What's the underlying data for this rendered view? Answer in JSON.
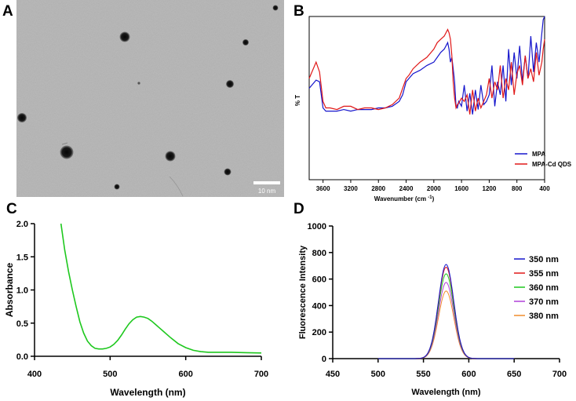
{
  "panels": {
    "a": {
      "letter": "A",
      "scale_bar_label": "10 nm"
    },
    "b": {
      "letter": "B"
    },
    "c": {
      "letter": "C"
    },
    "d": {
      "letter": "D"
    }
  },
  "colors": {
    "blue": "#1515cc",
    "red": "#e01818",
    "green": "#1ec81e",
    "purple": "#b040d8",
    "orange": "#f08c2c"
  },
  "chart_data": [
    {
      "id": "B",
      "type": "line",
      "title": "",
      "xlabel": "Wavenumber (cm ",
      "xlabel_sup": "-1",
      "xlabel_close": ")",
      "ylabel": "% T",
      "xlim": [
        3800,
        400
      ],
      "ylim": [
        0,
        100
      ],
      "x_ticks": [
        3600,
        3200,
        2800,
        2400,
        2000,
        1600,
        1200,
        800,
        400
      ],
      "legend_position": "bottom-right",
      "series": [
        {
          "name": "MPA",
          "color": "#1515cc",
          "x": [
            3800,
            3700,
            3650,
            3600,
            3560,
            3500,
            3400,
            3300,
            3200,
            3100,
            3000,
            2900,
            2800,
            2700,
            2600,
            2500,
            2450,
            2400,
            2360,
            2300,
            2200,
            2100,
            2000,
            1950,
            1900,
            1850,
            1800,
            1780,
            1760,
            1740,
            1720,
            1700,
            1680,
            1660,
            1640,
            1600,
            1560,
            1520,
            1480,
            1440,
            1400,
            1360,
            1320,
            1280,
            1240,
            1200,
            1160,
            1120,
            1080,
            1040,
            1000,
            960,
            920,
            880,
            840,
            800,
            760,
            720,
            680,
            640,
            600,
            560,
            520,
            480,
            440,
            420,
            400
          ],
          "y": [
            56,
            61,
            60,
            44,
            42,
            42,
            42,
            43,
            42,
            43,
            43,
            43,
            44,
            44,
            45,
            48,
            52,
            60,
            62,
            65,
            67,
            70,
            72,
            75,
            78,
            80,
            84,
            80,
            72,
            75,
            68,
            60,
            45,
            44,
            48,
            45,
            58,
            42,
            53,
            40,
            55,
            43,
            58,
            46,
            48,
            52,
            70,
            45,
            60,
            52,
            70,
            48,
            80,
            58,
            78,
            62,
            82,
            60,
            76,
            62,
            88,
            66,
            84,
            72,
            90,
            98,
            100
          ]
        },
        {
          "name": "MPA-Cd QDS",
          "color": "#e01818",
          "x": [
            3800,
            3700,
            3650,
            3600,
            3560,
            3500,
            3400,
            3300,
            3200,
            3100,
            3000,
            2900,
            2800,
            2700,
            2600,
            2500,
            2450,
            2400,
            2360,
            2300,
            2200,
            2100,
            2000,
            1950,
            1900,
            1850,
            1800,
            1780,
            1760,
            1740,
            1720,
            1700,
            1680,
            1660,
            1640,
            1600,
            1560,
            1520,
            1480,
            1440,
            1400,
            1360,
            1320,
            1280,
            1240,
            1200,
            1160,
            1120,
            1080,
            1040,
            1000,
            960,
            920,
            880,
            840,
            800,
            760,
            720,
            680,
            640,
            600,
            560,
            520,
            480,
            440,
            420,
            400
          ],
          "y": [
            62,
            72,
            66,
            48,
            44,
            44,
            43,
            45,
            45,
            43,
            44,
            44,
            43,
            44,
            46,
            50,
            56,
            62,
            64,
            68,
            72,
            75,
            80,
            84,
            86,
            88,
            92,
            90,
            86,
            76,
            60,
            50,
            44,
            46,
            47,
            50,
            48,
            52,
            40,
            55,
            42,
            50,
            44,
            48,
            52,
            62,
            50,
            60,
            55,
            70,
            50,
            62,
            55,
            72,
            52,
            65,
            70,
            58,
            76,
            62,
            68,
            60,
            78,
            64,
            72,
            80,
            86
          ]
        }
      ]
    },
    {
      "id": "C",
      "type": "line",
      "title": "",
      "xlabel": "Wavelength (nm)",
      "ylabel": "Absorbance",
      "xlim": [
        400,
        700
      ],
      "ylim": [
        0,
        2.0
      ],
      "x_ticks": [
        400,
        500,
        600,
        700
      ],
      "y_ticks": [
        0.0,
        0.5,
        1.0,
        1.5,
        2.0
      ],
      "y_tick_labels": [
        "0.0",
        "0.5",
        "1.0",
        "1.5",
        "2.0"
      ],
      "series": [
        {
          "name": "Absorbance",
          "color": "#1ec81e",
          "x": [
            435,
            440,
            445,
            450,
            455,
            460,
            465,
            470,
            475,
            480,
            485,
            490,
            495,
            500,
            505,
            510,
            515,
            520,
            525,
            530,
            535,
            540,
            545,
            550,
            555,
            560,
            565,
            570,
            580,
            590,
            600,
            610,
            620,
            630,
            640,
            660,
            680,
            700
          ],
          "y": [
            2.0,
            1.6,
            1.28,
            1.0,
            0.75,
            0.52,
            0.35,
            0.23,
            0.16,
            0.12,
            0.11,
            0.11,
            0.12,
            0.14,
            0.18,
            0.24,
            0.32,
            0.41,
            0.49,
            0.55,
            0.59,
            0.6,
            0.59,
            0.57,
            0.53,
            0.48,
            0.43,
            0.38,
            0.28,
            0.19,
            0.13,
            0.09,
            0.07,
            0.06,
            0.06,
            0.06,
            0.055,
            0.05
          ]
        }
      ]
    },
    {
      "id": "D",
      "type": "line",
      "title": "",
      "xlabel": "Wavelength (nm)",
      "ylabel": "Fluorescence Intensity",
      "xlim": [
        450,
        700
      ],
      "ylim": [
        0,
        1000
      ],
      "x_ticks": [
        450,
        500,
        550,
        600,
        650,
        700
      ],
      "y_ticks": [
        0,
        200,
        400,
        600,
        800,
        1000
      ],
      "legend_position": "right",
      "peak_center": 575,
      "peak_sigma": 8.5,
      "x_range": [
        500,
        650
      ],
      "series": [
        {
          "name": "350 nm",
          "color": "#1515cc",
          "peak": 710
        },
        {
          "name": "355 nm",
          "color": "#e01818",
          "peak": 690
        },
        {
          "name": "360 nm",
          "color": "#1ec81e",
          "peak": 640
        },
        {
          "name": "370 nm",
          "color": "#b040d8",
          "peak": 575
        },
        {
          "name": "380 nm",
          "color": "#f08c2c",
          "peak": 510
        }
      ]
    }
  ]
}
